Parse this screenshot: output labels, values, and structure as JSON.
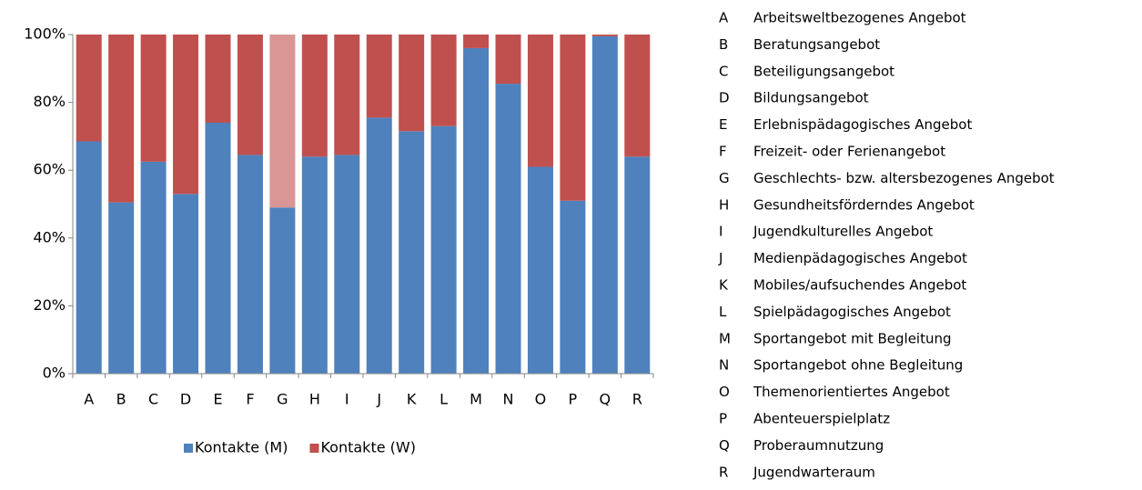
{
  "chart_data": {
    "type": "stacked_bar",
    "categories": [
      "A",
      "B",
      "C",
      "D",
      "E",
      "F",
      "G",
      "H",
      "I",
      "J",
      "K",
      "L",
      "M",
      "N",
      "O",
      "P",
      "Q",
      "R"
    ],
    "series": [
      {
        "name": "Kontakte (M)",
        "color": "#4f81bd",
        "values": [
          68.5,
          50.5,
          62.5,
          53,
          74,
          64.5,
          49,
          64,
          64.5,
          75.5,
          71.5,
          73,
          96,
          85.5,
          61,
          51,
          99.5,
          64
        ]
      },
      {
        "name": "Kontakte (W)",
        "color": "#c0504d",
        "colors": [
          "#c0504d",
          "#c0504d",
          "#c0504d",
          "#c0504d",
          "#c0504d",
          "#c0504d",
          "#d99694",
          "#c0504d",
          "#c0504d",
          "#c0504d",
          "#c0504d",
          "#c0504d",
          "#c0504d",
          "#c0504d",
          "#c0504d",
          "#c0504d",
          "#c0504d",
          "#c0504d"
        ],
        "values": [
          31.5,
          49.5,
          37.5,
          47,
          26,
          35.5,
          51,
          36,
          35.5,
          24.5,
          28.5,
          27,
          4,
          14.5,
          39,
          49,
          0.5,
          36
        ]
      }
    ],
    "ylim": [
      0,
      100
    ],
    "yticks": [
      {
        "value": 0,
        "label": "0%"
      },
      {
        "value": 20,
        "label": "20%"
      },
      {
        "value": 40,
        "label": "40%"
      },
      {
        "value": 60,
        "label": "60%"
      },
      {
        "value": 80,
        "label": "80%"
      },
      {
        "value": 100,
        "label": "100%"
      }
    ],
    "grid": false,
    "legend": "bottom",
    "category_descriptions": [
      "Arbeitsweltbezogenes Angebot",
      "Beratungsangebot",
      "Beteiligungsangebot",
      "Bildungsangebot",
      "Erlebnispädagogisches Angebot",
      "Freizeit- oder Ferienangebot",
      "Geschlechts- bzw. altersbezogenes Angebot",
      "Gesundheitsförderndes Angebot",
      "Jugendkulturelles Angebot",
      "Medienpädagogisches Angebot",
      "Mobiles/aufsuchendes Angebot",
      "Spielpädagogisches Angebot",
      "Sportangebot mit Begleitung",
      "Sportangebot ohne Begleitung",
      "Themenorientiertes Angebot",
      "Abenteuerspielplatz",
      "Proberaumnutzung",
      "Jugendwarteraum"
    ]
  }
}
